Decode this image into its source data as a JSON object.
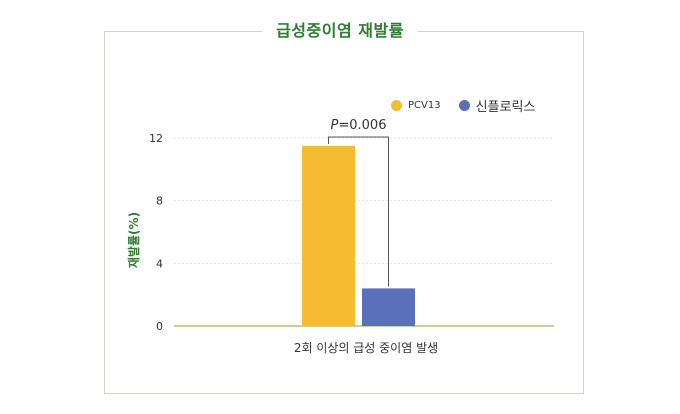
{
  "title": "급성중이염 재발률",
  "chart_data": {
    "type": "bar",
    "categories": [
      "2회 이상의 급성 중이염 발생"
    ],
    "series": [
      {
        "name": "PCV13",
        "values": [
          11.5
        ],
        "color": "#f5bb33"
      },
      {
        "name": "신플로릭스",
        "values": [
          2.4
        ],
        "color": "#5b6fba"
      }
    ],
    "ylabel": "재발률(%)",
    "xlabel": "",
    "ylim": [
      0,
      12
    ],
    "yticks": [
      "0",
      "4",
      "8",
      "12"
    ],
    "grid": true,
    "legend_position": "top-right",
    "annotation": {
      "italic": "P",
      "text": "=0.006"
    },
    "axis_color": "#b5c476"
  }
}
